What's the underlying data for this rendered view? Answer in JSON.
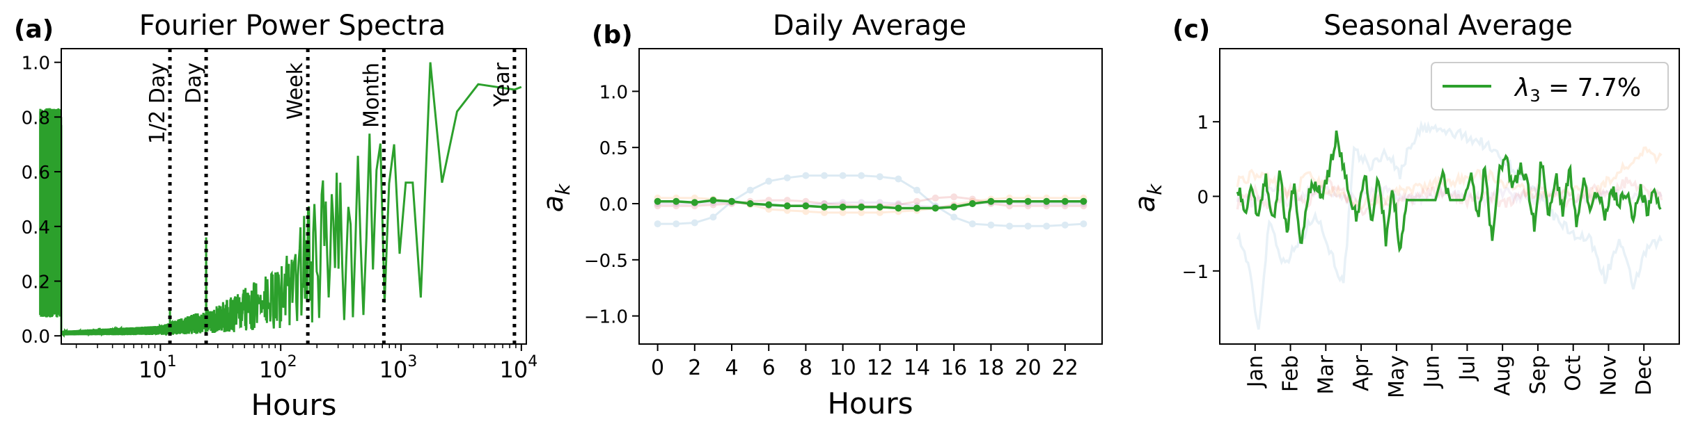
{
  "chart_data": [
    {
      "type": "line",
      "panel_label": "(a)",
      "title": "Fourier Power Spectra",
      "xlabel": "Hours",
      "ylabel": "",
      "xscale": "log",
      "xlim": [
        1.5,
        11000
      ],
      "ylim": [
        -0.03,
        1.05
      ],
      "xticks": [
        {
          "value": 10,
          "base": "10",
          "exp": "1"
        },
        {
          "value": 100,
          "base": "10",
          "exp": "2"
        },
        {
          "value": 1000,
          "base": "10",
          "exp": "3"
        },
        {
          "value": 10000,
          "base": "10",
          "exp": "4"
        }
      ],
      "yticks": [
        {
          "value": 0.0,
          "label": "0.0"
        },
        {
          "value": 0.2,
          "label": "0.2"
        },
        {
          "value": 0.4,
          "label": "0.4"
        },
        {
          "value": 0.6,
          "label": "0.6"
        },
        {
          "value": 0.8,
          "label": "0.8"
        },
        {
          "value": 1.0,
          "label": "1.0"
        }
      ],
      "grid": false,
      "color": "#2ca02c",
      "markers": [
        {
          "x": 12,
          "label": "1/2 Day"
        },
        {
          "x": 24,
          "label": "Day"
        },
        {
          "x": 168,
          "label": "Week"
        },
        {
          "x": 720,
          "label": "Month"
        },
        {
          "x": 8760,
          "label": "Year"
        }
      ]
    },
    {
      "type": "line",
      "panel_label": "(b)",
      "title": "Daily Average",
      "xlabel": "Hours",
      "ylabel_base": "a",
      "ylabel_sub": "k",
      "xlim": [
        -1,
        24
      ],
      "ylim": [
        -1.25,
        1.38
      ],
      "xticks": [
        {
          "value": 0,
          "label": "0"
        },
        {
          "value": 2,
          "label": "2"
        },
        {
          "value": 4,
          "label": "4"
        },
        {
          "value": 6,
          "label": "6"
        },
        {
          "value": 8,
          "label": "8"
        },
        {
          "value": 10,
          "label": "10"
        },
        {
          "value": 12,
          "label": "12"
        },
        {
          "value": 14,
          "label": "14"
        },
        {
          "value": 16,
          "label": "16"
        },
        {
          "value": 18,
          "label": "18"
        },
        {
          "value": 20,
          "label": "20"
        },
        {
          "value": 22,
          "label": "22"
        }
      ],
      "yticks": [
        {
          "value": -1.0,
          "label": "−1.0"
        },
        {
          "value": -0.5,
          "label": "−0.5"
        },
        {
          "value": 0.0,
          "label": "0.0"
        },
        {
          "value": 0.5,
          "label": "0.5"
        },
        {
          "value": 1.0,
          "label": "1.0"
        }
      ],
      "grid": false,
      "x": [
        0,
        1,
        2,
        3,
        4,
        5,
        6,
        7,
        8,
        9,
        10,
        11,
        12,
        13,
        14,
        15,
        16,
        17,
        18,
        19,
        20,
        21,
        22,
        23
      ],
      "series": [
        {
          "color": "#1f77b4",
          "opacity": 0.15,
          "values": [
            -0.18,
            -0.18,
            -0.17,
            -0.12,
            0.02,
            0.12,
            0.2,
            0.23,
            0.25,
            0.25,
            0.25,
            0.25,
            0.24,
            0.22,
            0.12,
            -0.02,
            -0.12,
            -0.18,
            -0.19,
            -0.2,
            -0.2,
            -0.2,
            -0.19,
            -0.18
          ]
        },
        {
          "color": "#ff7f0e",
          "opacity": 0.15,
          "values": [
            0.05,
            0.05,
            0.05,
            0.04,
            0.02,
            -0.01,
            -0.05,
            -0.06,
            -0.07,
            -0.08,
            -0.08,
            -0.08,
            -0.08,
            -0.07,
            -0.06,
            -0.04,
            -0.01,
            0.02,
            0.04,
            0.05,
            0.05,
            0.05,
            0.05,
            0.05
          ]
        },
        {
          "color": "#d62728",
          "opacity": 0.15,
          "values": [
            -0.02,
            -0.02,
            -0.02,
            -0.01,
            0.0,
            0.02,
            0.03,
            0.03,
            0.02,
            0.0,
            -0.01,
            -0.02,
            -0.02,
            -0.01,
            0.02,
            0.05,
            0.06,
            0.04,
            0.0,
            -0.02,
            -0.02,
            -0.02,
            -0.02,
            -0.02
          ]
        },
        {
          "color": "#9467bd",
          "opacity": 0.15,
          "values": [
            0.0,
            0.0,
            0.0,
            0.01,
            0.01,
            0.0,
            -0.02,
            -0.02,
            -0.01,
            0.0,
            0.01,
            0.01,
            0.01,
            0.0,
            -0.02,
            -0.03,
            -0.02,
            0.0,
            0.01,
            0.01,
            0.0,
            0.0,
            0.0,
            0.0
          ]
        },
        {
          "color": "#2ca02c",
          "opacity": 1.0,
          "highlight": true,
          "values": [
            0.02,
            0.02,
            0.01,
            0.03,
            0.02,
            0.0,
            -0.01,
            -0.02,
            -0.02,
            -0.03,
            -0.03,
            -0.03,
            -0.03,
            -0.04,
            -0.04,
            -0.04,
            -0.03,
            0.0,
            0.02,
            0.02,
            0.02,
            0.02,
            0.02,
            0.02
          ]
        }
      ]
    },
    {
      "type": "line",
      "panel_label": "(c)",
      "title": "Seasonal Average",
      "xlabel": "",
      "ylabel_base": "a",
      "ylabel_sub": "k",
      "xlim": [
        -0.5,
        12.5
      ],
      "ylim": [
        -1.98,
        1.98
      ],
      "xticks": [
        {
          "value": 0.5,
          "label": "Jan"
        },
        {
          "value": 1.5,
          "label": "Feb"
        },
        {
          "value": 2.5,
          "label": "Mar"
        },
        {
          "value": 3.5,
          "label": "Apr"
        },
        {
          "value": 4.5,
          "label": "May"
        },
        {
          "value": 5.5,
          "label": "Jun"
        },
        {
          "value": 6.5,
          "label": "Jul"
        },
        {
          "value": 7.5,
          "label": "Aug"
        },
        {
          "value": 8.5,
          "label": "Sep"
        },
        {
          "value": 9.5,
          "label": "Oct"
        },
        {
          "value": 10.5,
          "label": "Nov"
        },
        {
          "value": 11.5,
          "label": "Dec"
        }
      ],
      "yticks": [
        {
          "value": -1,
          "label": "−1"
        },
        {
          "value": 0,
          "label": "0"
        },
        {
          "value": 1,
          "label": "1"
        }
      ],
      "grid": false,
      "legend": {
        "position": "top-right",
        "label_lambda": "λ",
        "label_sub": "3",
        "label_rest": " = 7.7%",
        "color": "#2ca02c"
      },
      "series": [
        {
          "color": "#1f77b4",
          "opacity": 0.1,
          "knots": [
            [
              0,
              -0.5
            ],
            [
              0.3,
              -0.9
            ],
            [
              0.6,
              -1.8
            ],
            [
              0.9,
              -0.3
            ],
            [
              1.3,
              -0.9
            ],
            [
              1.8,
              -0.6
            ],
            [
              2.2,
              -0.2
            ],
            [
              2.6,
              -0.7
            ],
            [
              3.0,
              -1.2
            ],
            [
              3.3,
              0.6
            ],
            [
              3.8,
              0.4
            ],
            [
              4.2,
              0.6
            ],
            [
              4.6,
              0.3
            ],
            [
              4.9,
              0.7
            ],
            [
              5.2,
              0.9
            ],
            [
              5.6,
              0.9
            ],
            [
              6.0,
              0.85
            ],
            [
              6.5,
              0.8
            ],
            [
              7.0,
              0.7
            ],
            [
              7.5,
              0.5
            ],
            [
              8.0,
              0.3
            ],
            [
              8.5,
              0.0
            ],
            [
              9.0,
              -0.3
            ],
            [
              9.5,
              -0.5
            ],
            [
              10.0,
              -0.6
            ],
            [
              10.4,
              -1.1
            ],
            [
              10.8,
              -0.6
            ],
            [
              11.2,
              -1.2
            ],
            [
              11.6,
              -0.7
            ],
            [
              12.0,
              -0.6
            ]
          ]
        },
        {
          "color": "#ff7f0e",
          "opacity": 0.12,
          "knots": [
            [
              0,
              0.2
            ],
            [
              0.5,
              0.3
            ],
            [
              1.0,
              0.2
            ],
            [
              1.5,
              0.0
            ],
            [
              2.0,
              0.3
            ],
            [
              2.5,
              0.1
            ],
            [
              3.0,
              0.0
            ],
            [
              3.5,
              -0.1
            ],
            [
              4.0,
              -0.1
            ],
            [
              4.5,
              0.05
            ],
            [
              5.0,
              0.1
            ],
            [
              5.5,
              0.15
            ],
            [
              6.0,
              0.2
            ],
            [
              6.5,
              0.25
            ],
            [
              7.0,
              0.3
            ],
            [
              7.5,
              0.2
            ],
            [
              8.0,
              0.1
            ],
            [
              8.5,
              0.0
            ],
            [
              9.0,
              0.05
            ],
            [
              9.5,
              0.1
            ],
            [
              10.0,
              0.0
            ],
            [
              10.5,
              0.2
            ],
            [
              11.0,
              0.4
            ],
            [
              11.5,
              0.6
            ],
            [
              12.0,
              0.5
            ]
          ]
        },
        {
          "color": "#d62728",
          "opacity": 0.1,
          "knots": [
            [
              0,
              -0.1
            ],
            [
              0.5,
              0.05
            ],
            [
              1.0,
              -0.2
            ],
            [
              1.5,
              0.1
            ],
            [
              2.0,
              -0.1
            ],
            [
              2.5,
              0.2
            ],
            [
              3.0,
              0.05
            ],
            [
              3.5,
              -0.2
            ],
            [
              4.0,
              0.0
            ],
            [
              4.5,
              -0.1
            ],
            [
              5.0,
              0.0
            ],
            [
              5.5,
              0.05
            ],
            [
              6.0,
              0.0
            ],
            [
              6.5,
              -0.05
            ],
            [
              7.0,
              0.0
            ],
            [
              7.5,
              -0.1
            ],
            [
              8.0,
              0.0
            ],
            [
              8.5,
              0.1
            ],
            [
              9.0,
              0.0
            ],
            [
              9.5,
              -0.1
            ],
            [
              10.0,
              0.1
            ],
            [
              10.5,
              0.0
            ],
            [
              11.0,
              0.2
            ],
            [
              11.5,
              0.1
            ],
            [
              12.0,
              0.0
            ]
          ]
        },
        {
          "color": "#9467bd",
          "opacity": 0.1,
          "knots": [
            [
              0,
              0.0
            ],
            [
              0.5,
              -0.1
            ],
            [
              1.0,
              0.1
            ],
            [
              1.5,
              -0.1
            ],
            [
              2.0,
              0.05
            ],
            [
              2.5,
              0.1
            ],
            [
              3.0,
              -0.05
            ],
            [
              3.5,
              0.0
            ],
            [
              4.0,
              0.1
            ],
            [
              4.5,
              0.0
            ],
            [
              5.0,
              -0.05
            ],
            [
              5.5,
              0.0
            ],
            [
              6.0,
              0.05
            ],
            [
              6.5,
              0.0
            ],
            [
              7.0,
              -0.05
            ],
            [
              7.5,
              0.05
            ],
            [
              8.0,
              0.0
            ],
            [
              8.5,
              -0.05
            ],
            [
              9.0,
              0.05
            ],
            [
              9.5,
              0.0
            ],
            [
              10.0,
              -0.05
            ],
            [
              10.5,
              0.05
            ],
            [
              11.0,
              0.0
            ],
            [
              11.5,
              -0.05
            ],
            [
              12.0,
              0.0
            ]
          ]
        },
        {
          "color": "#2ca02c",
          "opacity": 1.0,
          "highlight": true,
          "knots": [
            [
              0,
              0.15
            ],
            [
              0.2,
              -0.2
            ],
            [
              0.4,
              0.1
            ],
            [
              0.6,
              -0.3
            ],
            [
              0.8,
              0.3
            ],
            [
              1.0,
              -0.4
            ],
            [
              1.2,
              0.35
            ],
            [
              1.4,
              -0.5
            ],
            [
              1.6,
              0.2
            ],
            [
              1.8,
              -0.7
            ],
            [
              2.0,
              0.0
            ],
            [
              2.2,
              0.2
            ],
            [
              2.4,
              0.0
            ],
            [
              2.6,
              0.35
            ],
            [
              2.8,
              0.8
            ],
            [
              3.0,
              0.4
            ],
            [
              3.2,
              -0.1
            ],
            [
              3.4,
              -0.3
            ],
            [
              3.6,
              0.3
            ],
            [
              3.8,
              -0.3
            ],
            [
              4.0,
              0.3
            ],
            [
              4.2,
              -0.6
            ],
            [
              4.4,
              0.1
            ],
            [
              4.6,
              -0.7
            ],
            [
              4.8,
              -0.05
            ],
            [
              5.2,
              -0.05
            ],
            [
              5.6,
              -0.05
            ],
            [
              5.8,
              0.3
            ],
            [
              6.0,
              -0.05
            ],
            [
              6.4,
              -0.05
            ],
            [
              6.6,
              0.3
            ],
            [
              6.8,
              -0.3
            ],
            [
              7.0,
              0.4
            ],
            [
              7.2,
              -0.6
            ],
            [
              7.4,
              0.3
            ],
            [
              7.6,
              0.5
            ],
            [
              7.8,
              0.1
            ],
            [
              8.0,
              0.4
            ],
            [
              8.2,
              0.2
            ],
            [
              8.4,
              -0.4
            ],
            [
              8.6,
              0.5
            ],
            [
              8.8,
              -0.3
            ],
            [
              9.0,
              0.3
            ],
            [
              9.2,
              -0.2
            ],
            [
              9.4,
              0.4
            ],
            [
              9.6,
              -0.4
            ],
            [
              9.8,
              0.2
            ],
            [
              10.0,
              -0.2
            ],
            [
              10.2,
              0.1
            ],
            [
              10.4,
              -0.3
            ],
            [
              10.6,
              0.1
            ],
            [
              10.8,
              -0.1
            ],
            [
              11.0,
              0.05
            ],
            [
              11.2,
              -0.3
            ],
            [
              11.4,
              0.1
            ],
            [
              11.6,
              -0.2
            ],
            [
              11.8,
              0.1
            ],
            [
              12.0,
              -0.3
            ]
          ]
        }
      ]
    }
  ]
}
